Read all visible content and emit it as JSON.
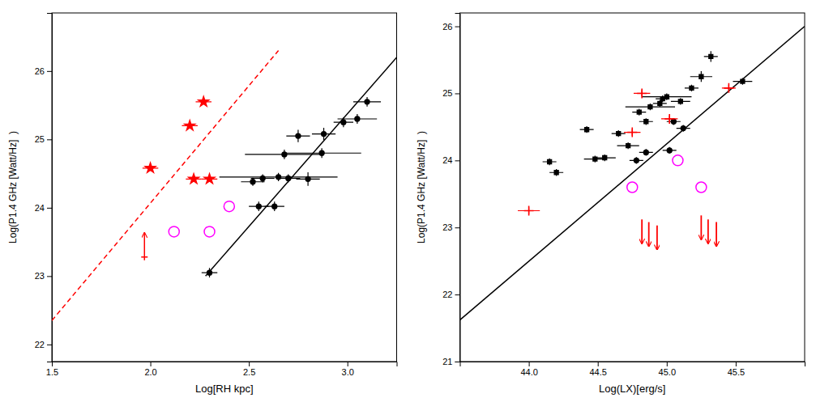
{
  "chart_data": [
    {
      "type": "scatter",
      "xlabel": "Log[RH kpc]",
      "ylabel": "Log(P1.4 GHz [Watt/Hz]  )",
      "xlim": [
        1.5,
        3.25
      ],
      "ylim": [
        21.75,
        26.85
      ],
      "xticks": [
        1.5,
        {
          "value": 2.0,
          "label": "2.0"
        },
        2.5,
        {
          "value": 3.0,
          "label": "3.0"
        }
      ],
      "yticks": [
        22,
        23,
        24,
        25,
        26
      ],
      "series": [
        {
          "type": "line",
          "color": "red",
          "line_style": "dashed",
          "x": [
            1.5,
            2.65
          ],
          "values": [
            22.35,
            26.3
          ]
        },
        {
          "type": "line",
          "color": "black",
          "line_style": "solid",
          "x": [
            2.28,
            3.25
          ],
          "values": [
            23.0,
            26.2
          ]
        },
        {
          "type": "scatter",
          "color": "black",
          "marker": "circle",
          "x": [
            2.55,
            2.63,
            2.52,
            2.65,
            2.7,
            2.57,
            2.8,
            2.68,
            2.87,
            2.75,
            2.88,
            2.98,
            3.05,
            3.1,
            2.3
          ],
          "values": [
            24.02,
            24.02,
            24.38,
            24.45,
            24.43,
            24.43,
            24.42,
            24.78,
            24.8,
            25.05,
            25.08,
            25.25,
            25.3,
            25.55,
            23.05
          ],
          "xerr": [
            0.05,
            0.05,
            0.06,
            0.3,
            0.06,
            0.06,
            0.06,
            0.2,
            0.2,
            0.06,
            0.06,
            0.05,
            0.1,
            0.07,
            0.04
          ],
          "yerr": [
            0.07,
            0.07,
            0.06,
            0.06,
            0.06,
            0.06,
            0.1,
            0.07,
            0.07,
            0.09,
            0.09,
            0.07,
            0.07,
            0.07,
            0.07
          ]
        },
        {
          "type": "scatter",
          "color": "red",
          "marker": "star",
          "x": [
            2.0,
            2.2,
            2.27,
            2.22,
            2.3
          ],
          "values": [
            24.58,
            25.2,
            25.55,
            24.42,
            24.42
          ],
          "xerr": [
            0.04,
            0.04,
            0.04,
            0.04,
            0.04
          ],
          "yerr": [
            0.04,
            0.04,
            0.04,
            0.04,
            0.04
          ]
        },
        {
          "type": "scatter",
          "color": "red",
          "marker": "arrow_up",
          "x": [
            1.97
          ],
          "values": [
            23.28
          ]
        },
        {
          "type": "scatter",
          "color": "magenta",
          "marker": "open_circle",
          "x": [
            2.12,
            2.3,
            2.4
          ],
          "values": [
            23.65,
            23.65,
            24.02
          ]
        }
      ]
    },
    {
      "type": "scatter",
      "xlabel": "Log(LX)[erg/s]",
      "ylabel": "Log(P1.4 GHz [Watt/Hz]  )",
      "xlim": [
        43.5,
        46.0
      ],
      "ylim": [
        21,
        26.2
      ],
      "xticks": [
        {
          "value": 44.0,
          "label": "44.0"
        },
        44.5,
        {
          "value": 45.0,
          "label": "45.0"
        },
        45.5
      ],
      "yticks": [
        21,
        22,
        23,
        24,
        25,
        26
      ],
      "series": [
        {
          "type": "line",
          "color": "black",
          "line_style": "solid",
          "x": [
            43.5,
            46.0
          ],
          "values": [
            21.62,
            26.0
          ]
        },
        {
          "type": "scatter",
          "color": "black",
          "marker": "square",
          "x": [
            44.15,
            44.2,
            44.42,
            44.48,
            44.55,
            44.65,
            44.72,
            44.8,
            44.85,
            44.88,
            44.95,
            44.97,
            45.0,
            45.1,
            45.18,
            45.25,
            45.32,
            45.55
          ],
          "values": [
            23.98,
            23.82,
            24.46,
            24.02,
            24.04,
            24.4,
            24.22,
            24.72,
            24.58,
            24.8,
            24.85,
            24.92,
            24.95,
            24.88,
            25.08,
            25.25,
            25.55,
            25.18
          ],
          "xerr": [
            0.05,
            0.05,
            0.05,
            0.08,
            0.08,
            0.05,
            0.08,
            0.05,
            0.05,
            0.18,
            0.05,
            0.05,
            0.18,
            0.07,
            0.05,
            0.08,
            0.05,
            0.07
          ],
          "yerr": [
            0.05,
            0.05,
            0.05,
            0.05,
            0.05,
            0.05,
            0.05,
            0.05,
            0.05,
            0.05,
            0.05,
            0.05,
            0.05,
            0.05,
            0.05,
            0.08,
            0.08,
            0.05
          ]
        },
        {
          "type": "scatter",
          "color": "black",
          "marker": "circle",
          "x": [
            44.78,
            44.85,
            45.02,
            45.05,
            45.12
          ],
          "values": [
            24.0,
            24.12,
            24.15,
            24.58,
            24.48
          ],
          "xerr": [
            0.05,
            0.05,
            0.05,
            0.05,
            0.05
          ],
          "yerr": [
            0.05,
            0.05,
            0.05,
            0.05,
            0.05
          ]
        },
        {
          "type": "scatter",
          "color": "red",
          "marker": "plus",
          "x": [
            44.75,
            44.82,
            45.02,
            45.45,
            44.0
          ],
          "values": [
            24.42,
            25.0,
            24.62,
            25.08,
            23.25
          ],
          "xerr": [
            0.06,
            0.06,
            0.06,
            0.05,
            0.08
          ],
          "yerr": [
            0.05,
            0.05,
            0.05,
            0.05,
            0.05
          ]
        },
        {
          "type": "scatter",
          "color": "magenta",
          "marker": "open_circle",
          "x": [
            45.08,
            44.75,
            45.25
          ],
          "values": [
            24.0,
            23.6,
            23.6
          ]
        },
        {
          "type": "scatter",
          "color": "red",
          "marker": "arrow_down",
          "x": [
            44.82,
            44.87,
            44.93,
            45.25,
            45.3,
            45.36
          ],
          "values": [
            23.12,
            23.08,
            23.03,
            23.18,
            23.12,
            23.08
          ]
        }
      ]
    }
  ]
}
